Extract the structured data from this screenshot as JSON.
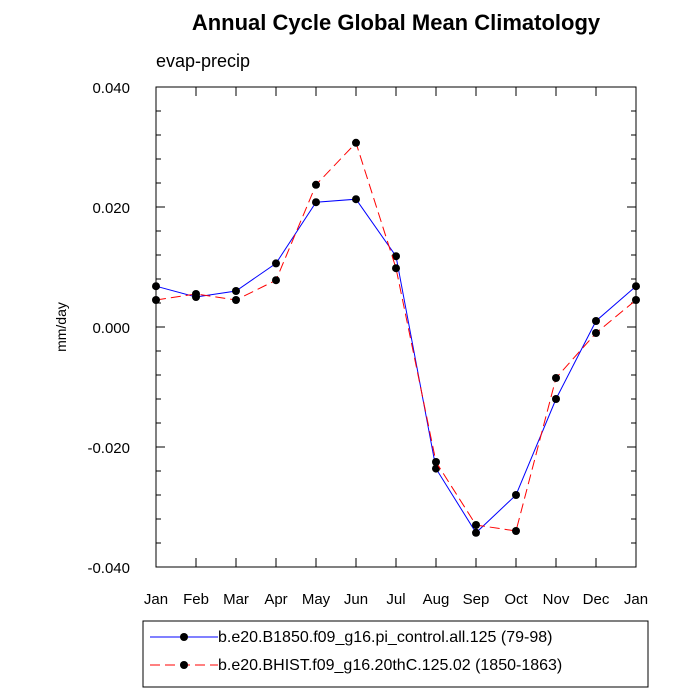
{
  "chart_data": {
    "type": "line",
    "title": "Annual Cycle Global Mean Climatology",
    "subtitle": "evap-precip",
    "xlabel": "",
    "ylabel": "mm/day",
    "categories": [
      "Jan",
      "Feb",
      "Mar",
      "Apr",
      "May",
      "Jun",
      "Jul",
      "Aug",
      "Sep",
      "Oct",
      "Nov",
      "Dec",
      "Jan"
    ],
    "ylim": [
      -0.04,
      0.04
    ],
    "yticks": [
      -0.04,
      -0.02,
      0.0,
      0.02,
      0.04
    ],
    "ytick_labels": [
      "-0.040",
      "-0.020",
      "0.000",
      "0.020",
      "0.040"
    ],
    "grid": false,
    "legend_placement": "bottom",
    "series": [
      {
        "name": "b.e20.B1850.f09_g16.pi_control.all.125 (79-98)",
        "color": "#0000ff",
        "dash": "solid",
        "values": [
          0.0068,
          0.005,
          0.006,
          0.0106,
          0.0208,
          0.0213,
          0.0118,
          -0.0236,
          -0.0343,
          -0.028,
          -0.012,
          0.001,
          0.0068
        ]
      },
      {
        "name": "b.e20.BHIST.f09_g16.20thC.125.02 (1850-1863)",
        "color": "#ff0000",
        "dash": "dashed",
        "values": [
          0.0045,
          0.0055,
          0.0045,
          0.0078,
          0.0237,
          0.0307,
          0.0098,
          -0.0225,
          -0.033,
          -0.034,
          -0.0085,
          -0.001,
          0.0045
        ]
      }
    ]
  }
}
